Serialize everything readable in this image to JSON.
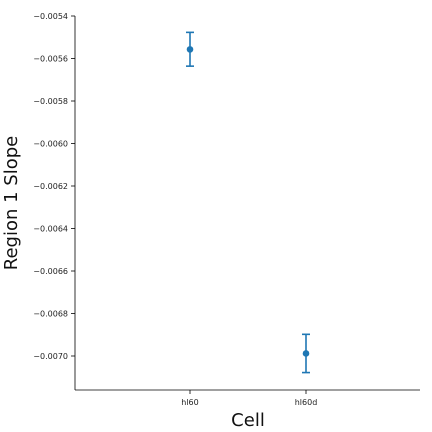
{
  "chart_data": {
    "type": "scatter",
    "title": "",
    "xlabel": "Cell",
    "ylabel": "Region 1 Slope",
    "categories": [
      "hl60",
      "hl60d"
    ],
    "series": [
      {
        "values": [
          -0.005557,
          -0.006988
        ],
        "error_low": [
          -0.005636,
          -0.007078
        ],
        "error_high": [
          -0.005477,
          -0.006898
        ],
        "color": "#1f77b4"
      }
    ],
    "ylim": [
      -0.00716,
      -0.0054
    ],
    "yticks": [
      -0.0054,
      -0.0056,
      -0.0058,
      -0.006,
      -0.0062,
      -0.0064,
      -0.0066,
      -0.0068,
      -0.007
    ],
    "ytick_labels": [
      "−0.0054",
      "−0.0056",
      "−0.0058",
      "−0.0060",
      "−0.0062",
      "−0.0064",
      "−0.0066",
      "−0.0068",
      "−0.0070"
    ],
    "grid": false,
    "legend": "none"
  }
}
